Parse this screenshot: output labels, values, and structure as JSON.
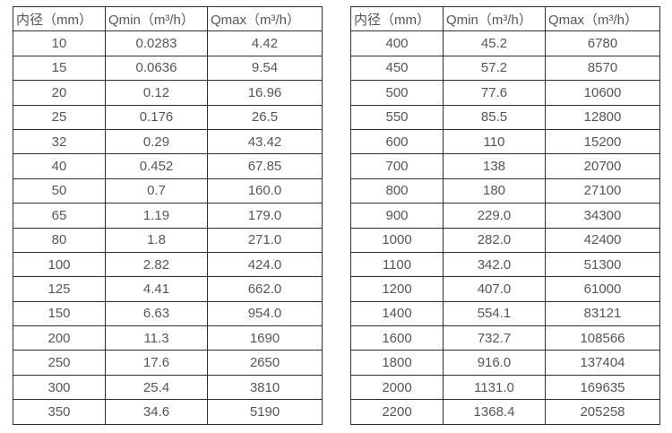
{
  "colors": {
    "background": "#ffffff",
    "border": "#2f2f2f",
    "text": "#565656"
  },
  "tables": [
    {
      "name": "flow-spec-small-diameters",
      "headers": [
        "内径（mm）",
        "Qmin（m³/h）",
        "Qmax（m³/h）"
      ],
      "rows": [
        [
          "10",
          "0.0283",
          "4.42"
        ],
        [
          "15",
          "0.0636",
          "9.54"
        ],
        [
          "20",
          "0.12",
          "16.96"
        ],
        [
          "25",
          "0.176",
          "26.5"
        ],
        [
          "32",
          "0.29",
          "43.42"
        ],
        [
          "40",
          "0.452",
          "67.85"
        ],
        [
          "50",
          "0.7",
          "160.0"
        ],
        [
          "65",
          "1.19",
          "179.0"
        ],
        [
          "80",
          "1.8",
          "271.0"
        ],
        [
          "100",
          "2.82",
          "424.0"
        ],
        [
          "125",
          "4.41",
          "662.0"
        ],
        [
          "150",
          "6.63",
          "954.0"
        ],
        [
          "200",
          "11.3",
          "1690"
        ],
        [
          "250",
          "17.6",
          "2650"
        ],
        [
          "300",
          "25.4",
          "3810"
        ],
        [
          "350",
          "34.6",
          "5190"
        ]
      ]
    },
    {
      "name": "flow-spec-large-diameters",
      "headers": [
        "内径（mm）",
        "Qmin（m³/h）",
        "Qmax（m³/h）"
      ],
      "rows": [
        [
          "400",
          "45.2",
          "6780"
        ],
        [
          "450",
          "57.2",
          "8570"
        ],
        [
          "500",
          "77.6",
          "10600"
        ],
        [
          "550",
          "85.5",
          "12800"
        ],
        [
          "600",
          "110",
          "15200"
        ],
        [
          "700",
          "138",
          "20700"
        ],
        [
          "800",
          "180",
          "27100"
        ],
        [
          "900",
          "229.0",
          "34300"
        ],
        [
          "1000",
          "282.0",
          "42400"
        ],
        [
          "1100",
          "342.0",
          "51300"
        ],
        [
          "1200",
          "407.0",
          "61000"
        ],
        [
          "1400",
          "554.1",
          "83121"
        ],
        [
          "1600",
          "732.7",
          "108566"
        ],
        [
          "1800",
          "916.0",
          "137404"
        ],
        [
          "2000",
          "1131.0",
          "169635"
        ],
        [
          "2200",
          "1368.4",
          "205258"
        ]
      ]
    }
  ]
}
